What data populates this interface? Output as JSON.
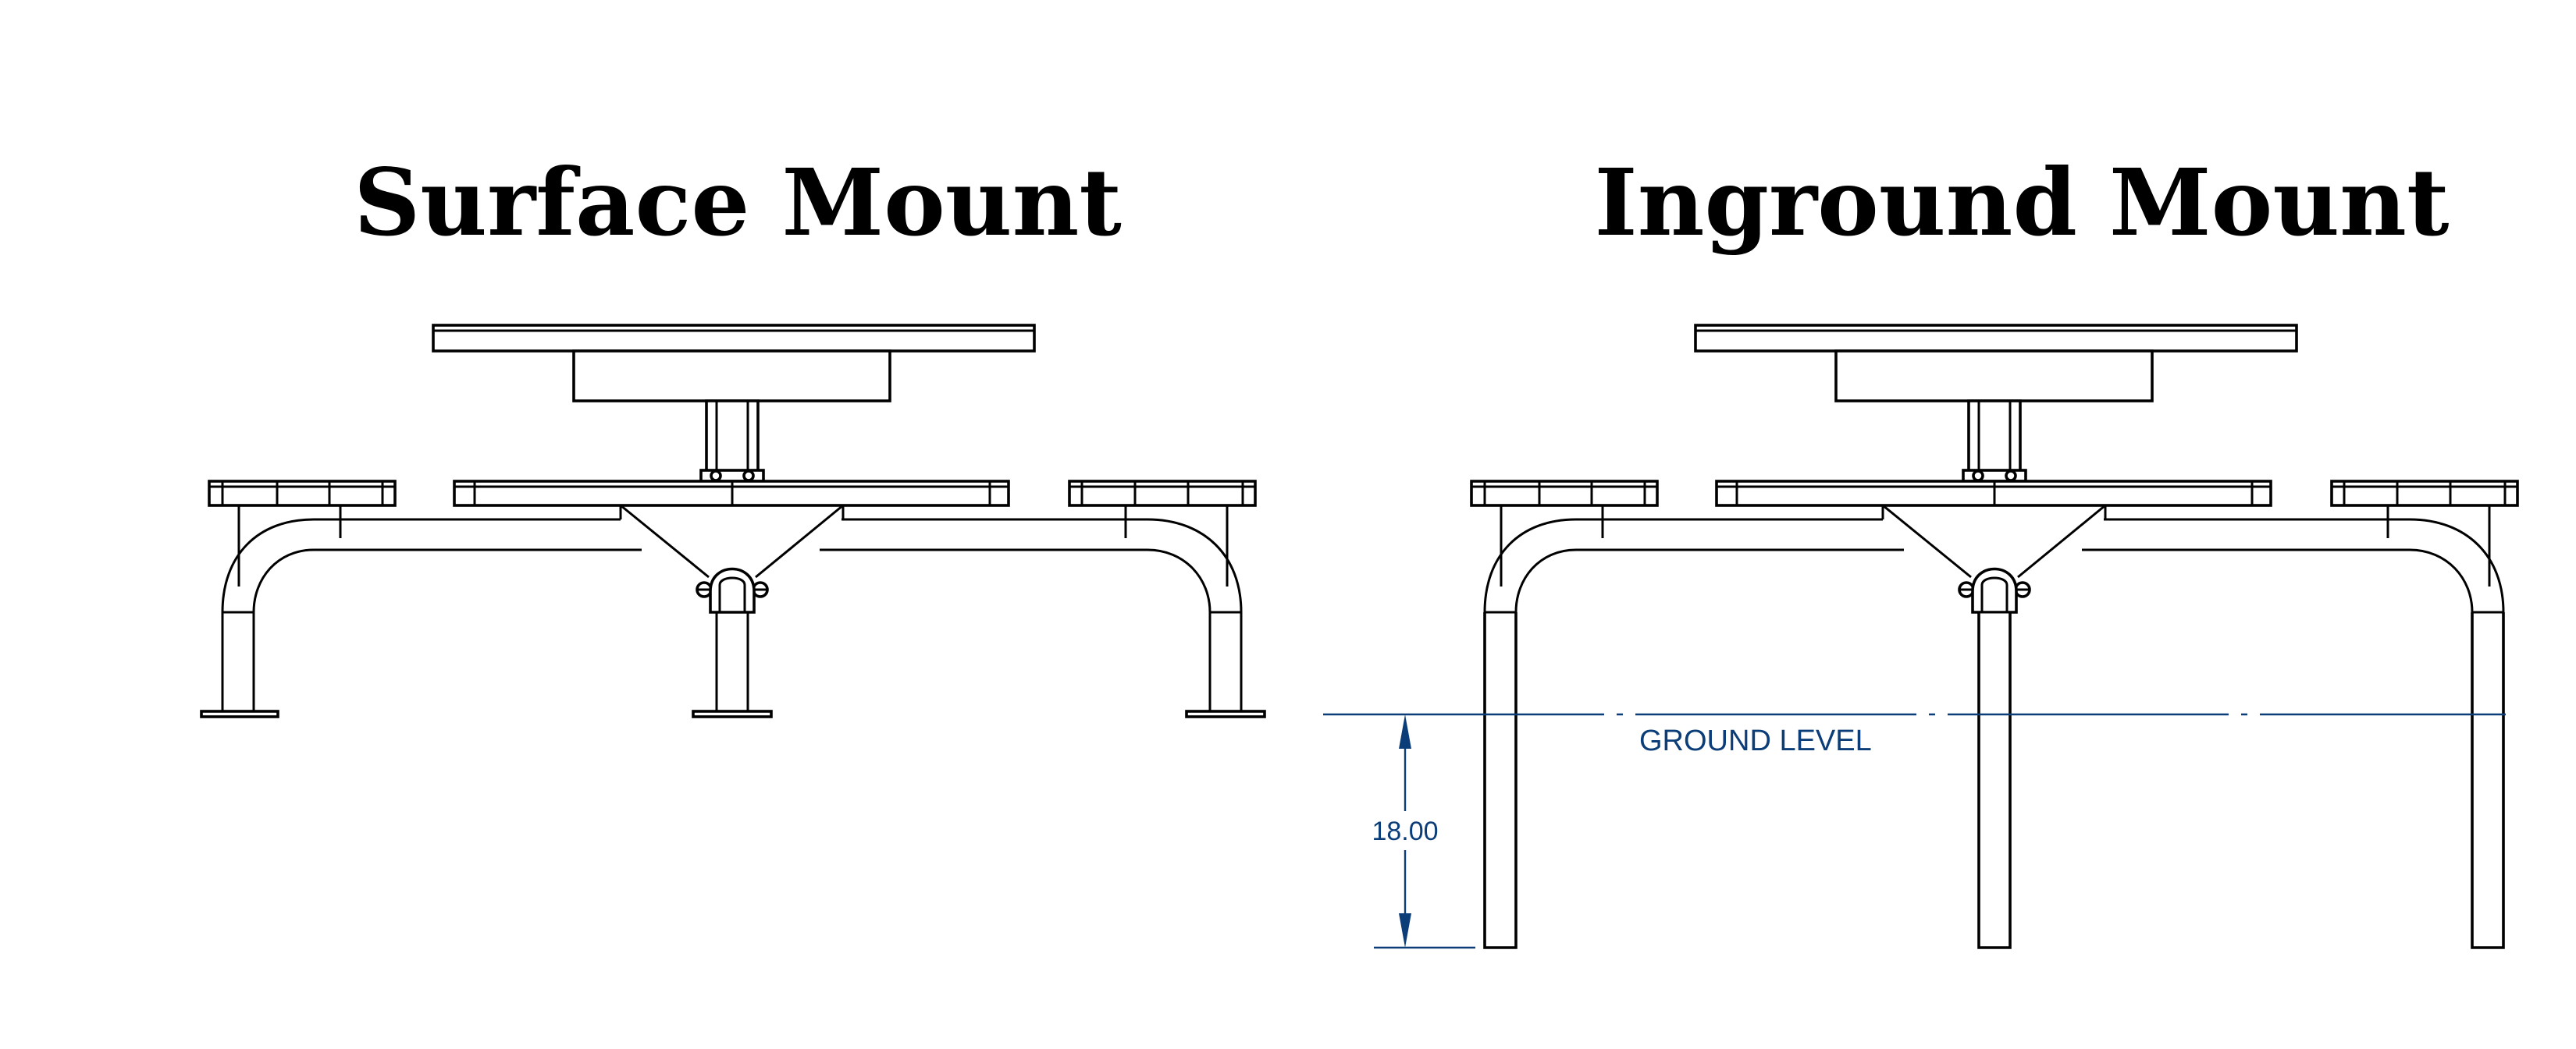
{
  "titles": {
    "surface": "Surface Mount",
    "inground": "Inground Mount"
  },
  "annotations": {
    "ground_level": "GROUND LEVEL",
    "burial_depth": "18.00"
  },
  "colors": {
    "line": "#000000",
    "dimension": "#0b3d78",
    "background": "#ffffff"
  }
}
